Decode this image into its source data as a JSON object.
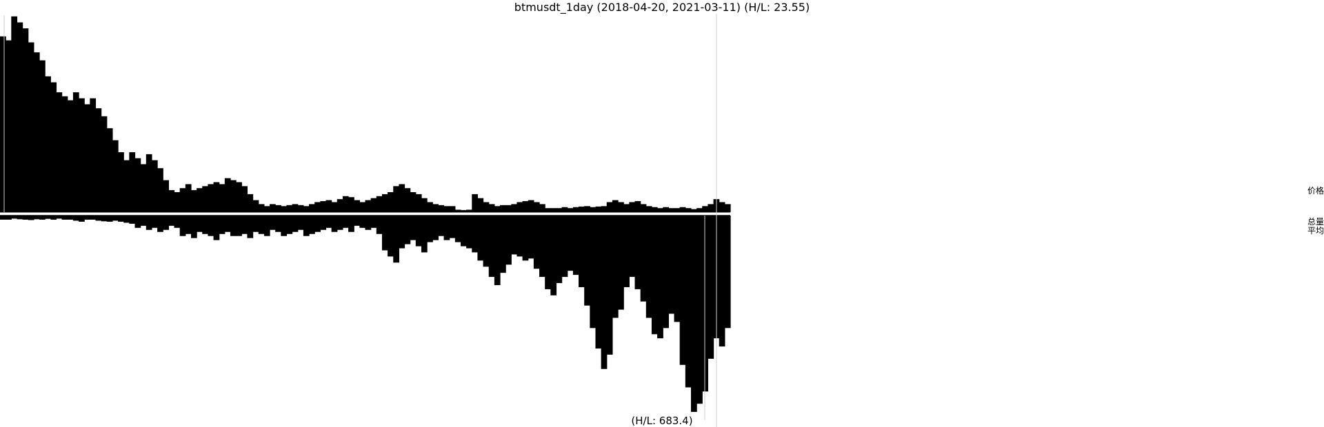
{
  "chart_data": {
    "type": "area",
    "title": "btmusdt_1day (2018-04-20, 2021-03-11) (H/L: 23.55)",
    "symbol": "btmusdt_1day",
    "date_range": [
      "2018-04-20",
      "2021-03-11"
    ],
    "panels": [
      {
        "name": "价格",
        "type": "area",
        "hl_ratio": 23.55,
        "direction": "up",
        "normalized_scale": [
          0,
          1
        ],
        "values": [
          0.88,
          0.86,
          0.98,
          0.95,
          0.92,
          0.85,
          0.8,
          0.76,
          0.68,
          0.65,
          0.6,
          0.58,
          0.56,
          0.6,
          0.57,
          0.54,
          0.57,
          0.52,
          0.48,
          0.42,
          0.36,
          0.3,
          0.26,
          0.3,
          0.27,
          0.24,
          0.29,
          0.26,
          0.22,
          0.16,
          0.11,
          0.1,
          0.12,
          0.14,
          0.11,
          0.12,
          0.13,
          0.14,
          0.15,
          0.14,
          0.17,
          0.16,
          0.15,
          0.13,
          0.09,
          0.06,
          0.04,
          0.03,
          0.04,
          0.035,
          0.03,
          0.035,
          0.04,
          0.035,
          0.03,
          0.04,
          0.05,
          0.055,
          0.06,
          0.05,
          0.065,
          0.08,
          0.075,
          0.06,
          0.05,
          0.06,
          0.07,
          0.08,
          0.09,
          0.1,
          0.13,
          0.14,
          0.12,
          0.1,
          0.09,
          0.07,
          0.05,
          0.04,
          0.035,
          0.03,
          0.03,
          0.012,
          0.01,
          0.012,
          0.09,
          0.07,
          0.05,
          0.04,
          0.03,
          0.035,
          0.035,
          0.04,
          0.05,
          0.055,
          0.06,
          0.05,
          0.04,
          0.02,
          0.02,
          0.02,
          0.025,
          0.02,
          0.025,
          0.028,
          0.03,
          0.025,
          0.028,
          0.03,
          0.05,
          0.06,
          0.05,
          0.04,
          0.05,
          0.055,
          0.04,
          0.03,
          0.025,
          0.02,
          0.025,
          0.02,
          0.02,
          0.025,
          0.02,
          0.015,
          0.02,
          0.03,
          0.04,
          0.065,
          0.05,
          0.04
        ]
      },
      {
        "name": "总量平均",
        "type": "bar",
        "hl_ratio": 683.4,
        "hl_label": "(H/L: 683.4)",
        "direction": "down",
        "normalized_scale": [
          0,
          1
        ],
        "values": [
          0.02,
          0.02,
          0.015,
          0.018,
          0.02,
          0.022,
          0.018,
          0.02,
          0.016,
          0.02,
          0.015,
          0.02,
          0.02,
          0.025,
          0.03,
          0.02,
          0.02,
          0.025,
          0.028,
          0.03,
          0.025,
          0.03,
          0.035,
          0.04,
          0.06,
          0.05,
          0.07,
          0.06,
          0.08,
          0.07,
          0.05,
          0.06,
          0.1,
          0.09,
          0.11,
          0.08,
          0.09,
          0.1,
          0.12,
          0.09,
          0.08,
          0.1,
          0.1,
          0.09,
          0.11,
          0.08,
          0.09,
          0.1,
          0.07,
          0.08,
          0.1,
          0.09,
          0.08,
          0.07,
          0.1,
          0.09,
          0.08,
          0.07,
          0.06,
          0.08,
          0.07,
          0.06,
          0.08,
          0.05,
          0.06,
          0.07,
          0.06,
          0.09,
          0.17,
          0.2,
          0.23,
          0.16,
          0.14,
          0.12,
          0.15,
          0.18,
          0.13,
          0.12,
          0.1,
          0.12,
          0.11,
          0.13,
          0.15,
          0.16,
          0.18,
          0.22,
          0.25,
          0.3,
          0.34,
          0.28,
          0.24,
          0.19,
          0.2,
          0.22,
          0.21,
          0.26,
          0.3,
          0.36,
          0.39,
          0.33,
          0.3,
          0.27,
          0.29,
          0.35,
          0.44,
          0.55,
          0.65,
          0.75,
          0.68,
          0.5,
          0.46,
          0.35,
          0.3,
          0.36,
          0.42,
          0.5,
          0.58,
          0.6,
          0.55,
          0.48,
          0.52,
          0.73,
          0.84,
          0.96,
          0.92,
          0.86,
          0.7,
          0.6,
          0.64,
          0.55
        ]
      }
    ],
    "grid": false,
    "legend": "right-side vertical labels"
  }
}
